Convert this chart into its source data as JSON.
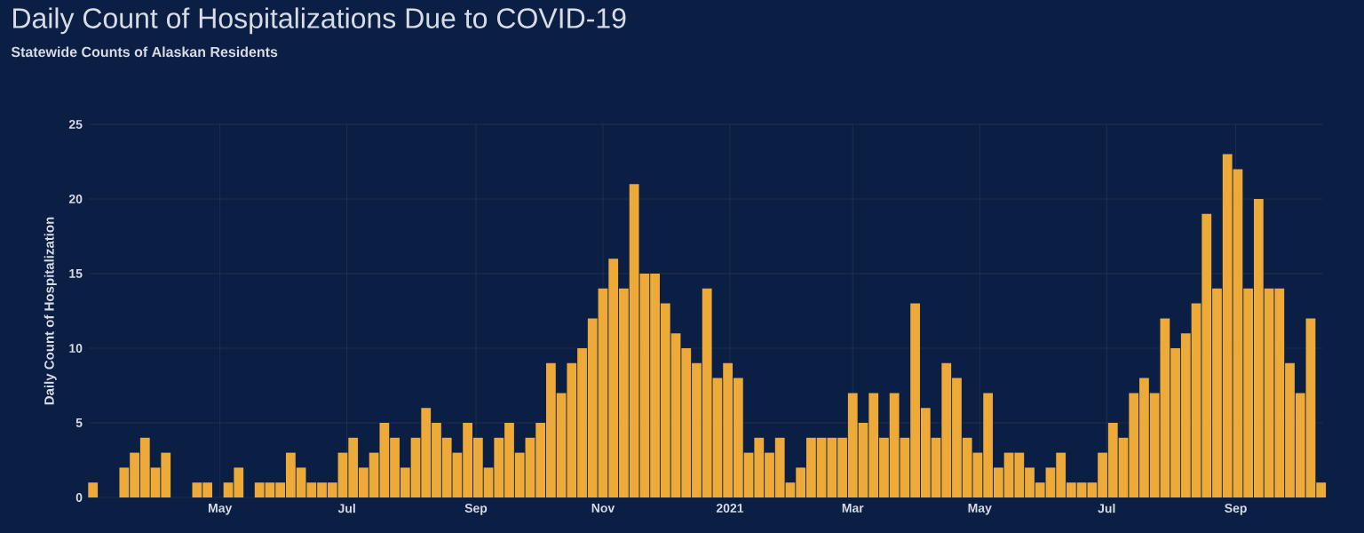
{
  "chart_data": {
    "type": "bar",
    "title": "Daily Count of Hospitalizations Due to COVID-19",
    "subtitle": "Statewide Counts of Alaskan Residents",
    "ylabel": "Daily Count of Hospitalization",
    "color": "#eeaa38",
    "grid": true,
    "x": [
      "2020-03-01",
      "2020-03-06",
      "2020-03-11",
      "2020-03-16",
      "2020-03-21",
      "2020-03-26",
      "2020-03-31",
      "2020-04-05",
      "2020-04-10",
      "2020-04-15",
      "2020-04-20",
      "2020-04-25",
      "2020-04-30",
      "2020-05-05",
      "2020-05-10",
      "2020-05-15",
      "2020-05-20",
      "2020-05-25",
      "2020-05-30",
      "2020-06-04",
      "2020-06-09",
      "2020-06-14",
      "2020-06-19",
      "2020-06-24",
      "2020-06-29",
      "2020-07-04",
      "2020-07-09",
      "2020-07-14",
      "2020-07-19",
      "2020-07-24",
      "2020-07-29",
      "2020-08-03",
      "2020-08-08",
      "2020-08-13",
      "2020-08-18",
      "2020-08-23",
      "2020-08-28",
      "2020-09-02",
      "2020-09-07",
      "2020-09-12",
      "2020-09-17",
      "2020-09-22",
      "2020-09-27",
      "2020-10-02",
      "2020-10-07",
      "2020-10-12",
      "2020-10-17",
      "2020-10-22",
      "2020-10-27",
      "2020-11-01",
      "2020-11-06",
      "2020-11-11",
      "2020-11-16",
      "2020-11-21",
      "2020-11-26",
      "2020-12-01",
      "2020-12-06",
      "2020-12-11",
      "2020-12-16",
      "2020-12-21",
      "2020-12-26",
      "2020-12-31",
      "2021-01-05",
      "2021-01-10",
      "2021-01-15",
      "2021-01-20",
      "2021-01-25",
      "2021-01-30",
      "2021-02-04",
      "2021-02-09",
      "2021-02-14",
      "2021-02-19",
      "2021-02-24",
      "2021-03-01",
      "2021-03-06",
      "2021-03-11",
      "2021-03-16",
      "2021-03-21",
      "2021-03-26",
      "2021-03-31",
      "2021-04-05",
      "2021-04-10",
      "2021-04-15",
      "2021-04-20",
      "2021-04-25",
      "2021-04-30",
      "2021-05-05",
      "2021-05-10",
      "2021-05-15",
      "2021-05-20",
      "2021-05-25",
      "2021-05-30",
      "2021-06-04",
      "2021-06-09",
      "2021-06-14",
      "2021-06-19",
      "2021-06-24",
      "2021-06-29",
      "2021-07-04",
      "2021-07-09",
      "2021-07-14",
      "2021-07-19",
      "2021-07-24",
      "2021-07-29",
      "2021-08-03",
      "2021-08-08",
      "2021-08-13",
      "2021-08-18",
      "2021-08-23",
      "2021-08-28",
      "2021-09-02",
      "2021-09-07",
      "2021-09-12",
      "2021-09-17",
      "2021-09-22",
      "2021-09-27",
      "2021-10-02",
      "2021-10-07",
      "2021-10-12"
    ],
    "values": [
      1,
      0,
      0,
      2,
      3,
      4,
      2,
      3,
      0,
      0,
      1,
      1,
      0,
      1,
      2,
      0,
      1,
      1,
      1,
      3,
      2,
      1,
      1,
      1,
      3,
      4,
      2,
      3,
      5,
      4,
      2,
      4,
      6,
      5,
      4,
      3,
      5,
      4,
      2,
      4,
      5,
      3,
      4,
      5,
      9,
      7,
      9,
      10,
      12,
      14,
      16,
      14,
      21,
      15,
      15,
      13,
      11,
      10,
      9,
      14,
      8,
      9,
      8,
      3,
      4,
      3,
      4,
      1,
      2,
      4,
      4,
      4,
      4,
      7,
      5,
      7,
      4,
      7,
      4,
      13,
      6,
      4,
      9,
      8,
      4,
      3,
      7,
      2,
      3,
      3,
      2,
      1,
      2,
      3,
      1,
      1,
      1,
      3,
      5,
      4,
      7,
      8,
      7,
      12,
      10,
      11,
      13,
      19,
      14,
      23,
      22,
      14,
      20,
      14,
      14,
      9,
      7,
      12,
      1
    ],
    "xlim": [
      "2020-02-28",
      "2021-10-13"
    ],
    "xticks": [
      {
        "value": "2020-05-01",
        "label": "May"
      },
      {
        "value": "2020-07-01",
        "label": "Jul"
      },
      {
        "value": "2020-09-01",
        "label": "Sep"
      },
      {
        "value": "2020-11-01",
        "label": "Nov"
      },
      {
        "value": "2021-01-01",
        "label": "2021"
      },
      {
        "value": "2021-03-01",
        "label": "Mar"
      },
      {
        "value": "2021-05-01",
        "label": "May"
      },
      {
        "value": "2021-07-01",
        "label": "Jul"
      },
      {
        "value": "2021-09-01",
        "label": "Sep"
      }
    ],
    "ylim": [
      0,
      25
    ],
    "yticks": [
      0,
      5,
      10,
      15,
      20,
      25
    ]
  }
}
